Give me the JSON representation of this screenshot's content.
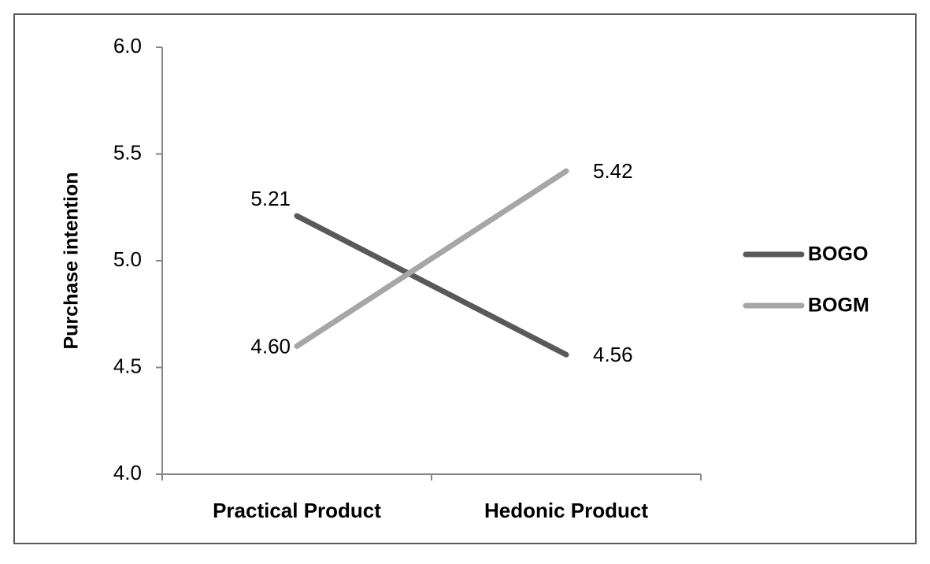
{
  "chart_data": {
    "type": "line",
    "y_label": "Purchase intention",
    "categories": [
      "Practical Product",
      "Hedonic Product"
    ],
    "series": [
      {
        "name": "BOGO",
        "color": "#595959",
        "values": [
          5.21,
          4.56
        ],
        "value_labels": [
          "5.21",
          "4.56"
        ]
      },
      {
        "name": "BOGM",
        "color": "#a6a6a6",
        "values": [
          4.6,
          5.42
        ],
        "value_labels": [
          "4.60",
          "5.42"
        ]
      }
    ],
    "ylim": [
      4.0,
      6.0
    ],
    "yticks": [
      {
        "value": 4.0,
        "label": "4.0"
      },
      4.5,
      {
        "value": 5.0,
        "label": "5.0"
      },
      5.5,
      {
        "value": 6.0,
        "label": "6.0"
      }
    ],
    "grid": false,
    "legend": "right"
  }
}
